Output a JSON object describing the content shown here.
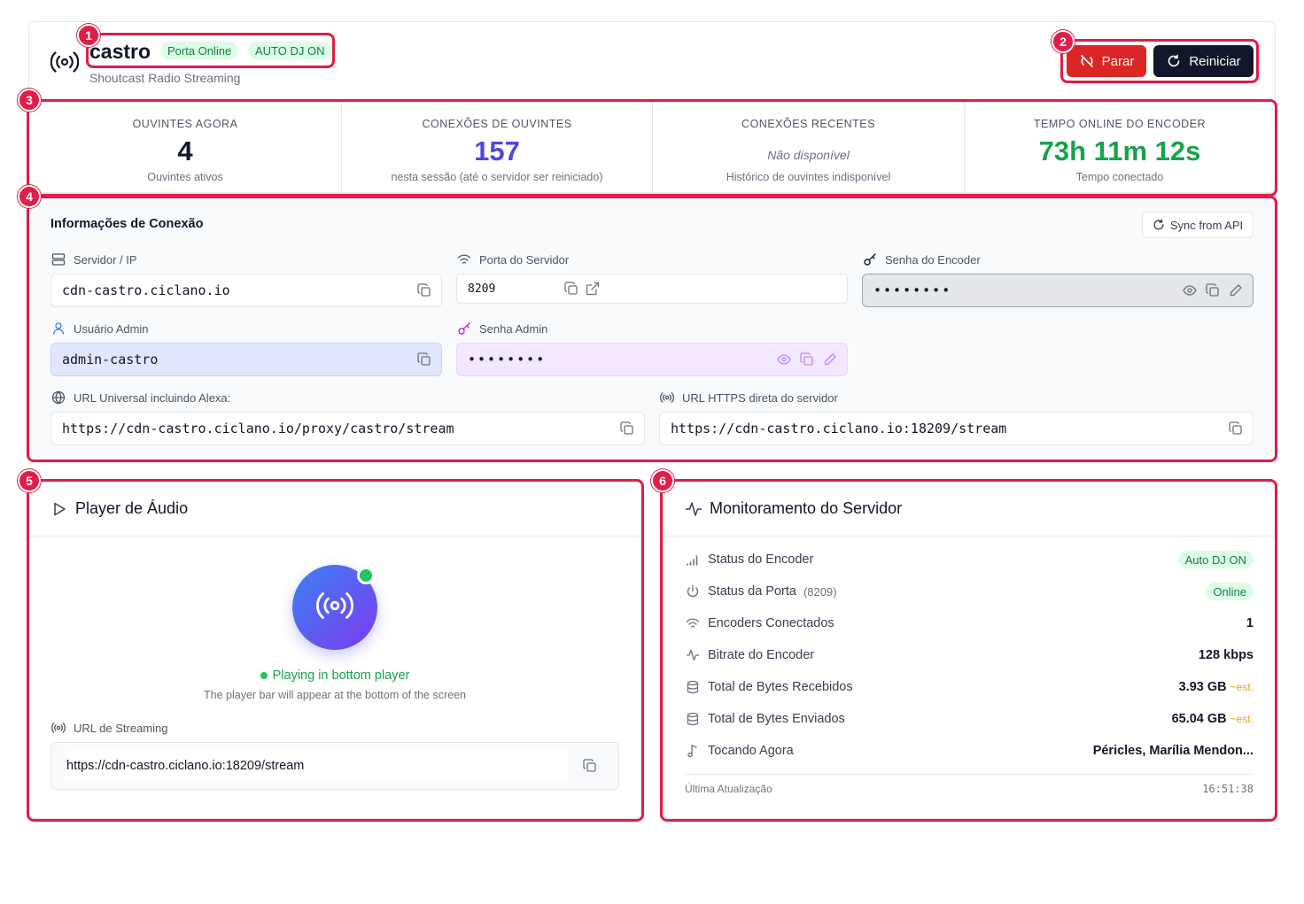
{
  "header": {
    "title": "castro",
    "subtitle": "Shoutcast Radio Streaming",
    "badges": [
      "Porta Online",
      "AUTO DJ ON"
    ],
    "stop_label": "Parar",
    "restart_label": "Reiniciar"
  },
  "annotations": [
    "1",
    "2",
    "3",
    "4",
    "5",
    "6"
  ],
  "stats": [
    {
      "label": "OUVINTES AGORA",
      "value": "4",
      "sub": "Ouvintes ativos",
      "color": "#111827"
    },
    {
      "label": "CONEXÕES DE OUVINTES",
      "value": "157",
      "sub": "nesta sessão (até o servidor ser reiniciado)",
      "color": "#4f46e5"
    },
    {
      "label": "CONEXÕES RECENTES",
      "value": "Não disponível",
      "sub": "Histórico de ouvintes indisponível",
      "color": "#6b7280"
    },
    {
      "label": "TEMPO ONLINE DO ENCODER",
      "value": "73h 11m 12s",
      "sub": "Tempo conectado",
      "color": "#16a34a"
    }
  ],
  "connection": {
    "title": "Informações de Conexão",
    "sync_label": "Sync from API",
    "server_label": "Servidor / IP",
    "server_value": "cdn-castro.ciclano.io",
    "port_label": "Porta do Servidor",
    "port_value": "8209",
    "encoder_pw_label": "Senha do Encoder",
    "encoder_pw_value": "••••••••",
    "admin_user_label": "Usuário Admin",
    "admin_user_value": "admin-castro",
    "admin_pw_label": "Senha Admin",
    "admin_pw_value": "••••••••",
    "universal_url_label": "URL Universal incluindo Alexa:",
    "universal_url_value": "https://cdn-castro.ciclano.io/proxy/castro/stream",
    "https_url_label": "URL HTTPS direta do servidor",
    "https_url_value": "https://cdn-castro.ciclano.io:18209/stream"
  },
  "player": {
    "title": "Player de Áudio",
    "status": "Playing in bottom player",
    "hint": "The player bar will appear at the bottom of the screen",
    "stream_label": "URL de Streaming",
    "stream_value": "https://cdn-castro.ciclano.io:18209/stream"
  },
  "monitor": {
    "title": "Monitoramento do Servidor",
    "rows": [
      {
        "label": "Status do Encoder",
        "value": "Auto DJ ON",
        "icon": "signal-bars-icon"
      },
      {
        "label": "Status da Porta",
        "extra": "(8209)",
        "value": "Online",
        "icon": "power-icon"
      },
      {
        "label": "Encoders Conectados",
        "value": "1",
        "icon": "wifi-icon"
      },
      {
        "label": "Bitrate do Encoder",
        "value": "128 kbps",
        "icon": "activity-icon"
      },
      {
        "label": "Total de Bytes Recebidos",
        "value": "3.93 GB",
        "est": "~est.",
        "icon": "database-icon"
      },
      {
        "label": "Total de Bytes Enviados",
        "value": "65.04 GB",
        "est": "~est.",
        "icon": "database-icon"
      },
      {
        "label": "Tocando Agora",
        "value": "Péricles, Marília Mendon...",
        "icon": "music-note-icon"
      }
    ],
    "updated_label": "Última Atualização",
    "updated_value": "16:51:38"
  }
}
